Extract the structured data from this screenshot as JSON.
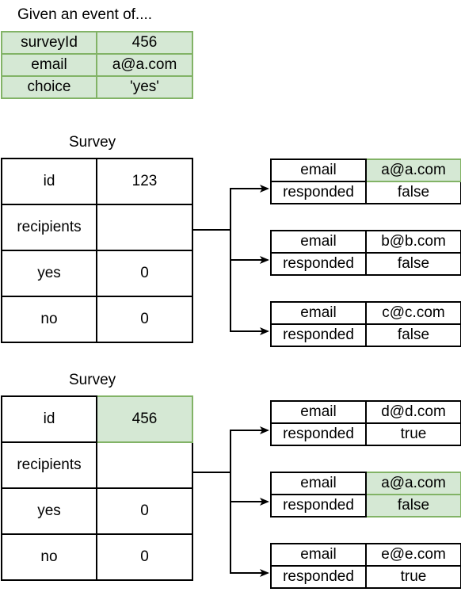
{
  "event": {
    "title": "Given an event of....",
    "rows": [
      {
        "key": "surveyId",
        "value": "456"
      },
      {
        "key": "email",
        "value": "a@a.com"
      },
      {
        "key": "choice",
        "value": "'yes'"
      }
    ]
  },
  "surveys": [
    {
      "title": "Survey",
      "rows": [
        {
          "key": "id",
          "value": "123"
        },
        {
          "key": "recipients",
          "value": ""
        },
        {
          "key": "yes",
          "value": "0"
        },
        {
          "key": "no",
          "value": "0"
        }
      ],
      "recipients": [
        {
          "email_label": "email",
          "email": "a@a.com",
          "responded_label": "responded",
          "responded": "false",
          "highlight_email": true,
          "highlight_responded": false
        },
        {
          "email_label": "email",
          "email": "b@b.com",
          "responded_label": "responded",
          "responded": "false",
          "highlight_email": false,
          "highlight_responded": false
        },
        {
          "email_label": "email",
          "email": "c@c.com",
          "responded_label": "responded",
          "responded": "false",
          "highlight_email": false,
          "highlight_responded": false
        }
      ]
    },
    {
      "title": "Survey",
      "highlight_id": true,
      "rows": [
        {
          "key": "id",
          "value": "456"
        },
        {
          "key": "recipients",
          "value": ""
        },
        {
          "key": "yes",
          "value": "0"
        },
        {
          "key": "no",
          "value": "0"
        }
      ],
      "recipients": [
        {
          "email_label": "email",
          "email": "d@d.com",
          "responded_label": "responded",
          "responded": "true",
          "highlight_email": false,
          "highlight_responded": false
        },
        {
          "email_label": "email",
          "email": "a@a.com",
          "responded_label": "responded",
          "responded": "false",
          "highlight_email": true,
          "highlight_responded": true
        },
        {
          "email_label": "email",
          "email": "e@e.com",
          "responded_label": "responded",
          "responded": "true",
          "highlight_email": false,
          "highlight_responded": false
        }
      ]
    }
  ],
  "colors": {
    "highlight_fill": "#d5e8d4",
    "highlight_stroke": "#82b366",
    "line": "#000000"
  }
}
